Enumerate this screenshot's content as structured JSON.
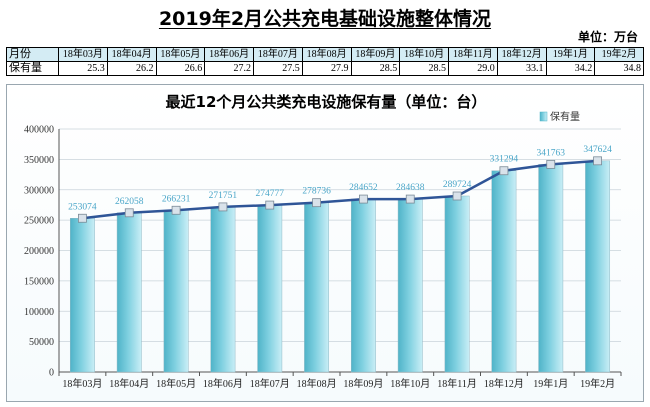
{
  "header": {
    "title": "2019年2月公共充电基础设施整体情况",
    "unit": "单位：万台"
  },
  "summary_table": {
    "row_label_months": "月份",
    "row_label_values": "保有量",
    "months": [
      "18年03月",
      "18年04月",
      "18年05月",
      "18年06月",
      "18年07月",
      "18年08月",
      "18年09月",
      "18年10月",
      "18年11月",
      "18年12月",
      "19年1月",
      "19年2月"
    ],
    "values": [
      "25.3",
      "26.2",
      "26.6",
      "27.2",
      "27.5",
      "27.9",
      "28.5",
      "28.5",
      "29.0",
      "33.1",
      "34.2",
      "34.8"
    ]
  },
  "chart_data": {
    "type": "bar",
    "title": "最近12个月公共类充电设施保有量（单位：台）",
    "categories": [
      "18年03月",
      "18年04月",
      "18年05月",
      "18年06月",
      "18年07月",
      "18年08月",
      "18年09月",
      "18年10月",
      "18年11月",
      "18年12月",
      "19年1月",
      "19年2月"
    ],
    "series": [
      {
        "name": "保有量",
        "values": [
          253074,
          262058,
          266231,
          271751,
          274777,
          278736,
          284652,
          284638,
          289724,
          331294,
          341763,
          347624
        ]
      }
    ],
    "trend_line": true,
    "data_labels": [
      "253074",
      "262058",
      "266231",
      "271751",
      "274777",
      "278736",
      "284652",
      "284638",
      "289724",
      "331294",
      "341763",
      "347624"
    ],
    "ylim": [
      0,
      400000
    ],
    "yticks": [
      "0",
      "50000",
      "100000",
      "150000",
      "200000",
      "250000",
      "300000",
      "350000",
      "400000"
    ],
    "ytick_values": [
      0,
      50000,
      100000,
      150000,
      200000,
      250000,
      300000,
      350000,
      400000
    ],
    "xlabel": "",
    "ylabel": "",
    "legend_position": "top-right",
    "grid": true,
    "colors": {
      "bar": "#7fd0e0",
      "bar_dark": "#4fb3c8",
      "line": "#2f5597",
      "label": "#4aa6c8",
      "marker": "#d9e2ea"
    }
  }
}
